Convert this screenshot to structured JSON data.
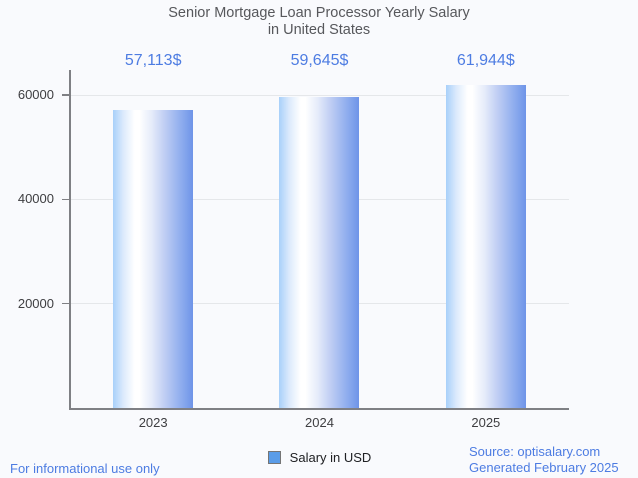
{
  "title_lines": [
    "Senior Mortgage Loan Processor Yearly Salary",
    "in United States"
  ],
  "legend": {
    "label": "Salary in USD"
  },
  "footer": {
    "left": "For informational use only",
    "source_line1": "Source: optisalary.com",
    "source_line2": "Generated February 2025"
  },
  "colors": {
    "background": "#f9fafd",
    "accent_blue_text": "#4d7ce2",
    "title_gray": "#57585c",
    "axis_gray": "#7f8084",
    "gridline": "#e5e7ea",
    "bar_edge_blue": "#6e94e8",
    "bar_light_blue": "#a8d0fa",
    "legend_swatch_fill": "#5a9ce8"
  },
  "chart_data": {
    "type": "bar",
    "title": "Senior Mortgage Loan Processor Yearly Salary in United States",
    "categories": [
      "2023",
      "2024",
      "2025"
    ],
    "values": [
      57113,
      59645,
      61944
    ],
    "value_labels": [
      "57,113$",
      "59,645$",
      "61,944$"
    ],
    "series_name": "Salary in USD",
    "xlabel": "",
    "ylabel": "",
    "ylim": [
      0,
      64800
    ],
    "yticks": [
      20000,
      40000,
      60000
    ],
    "ytick_labels": [
      "20000",
      "40000",
      "60000"
    ],
    "grid": true,
    "legend_position": "bottom",
    "bar_style": "horizontal-gradient-cylinder"
  }
}
